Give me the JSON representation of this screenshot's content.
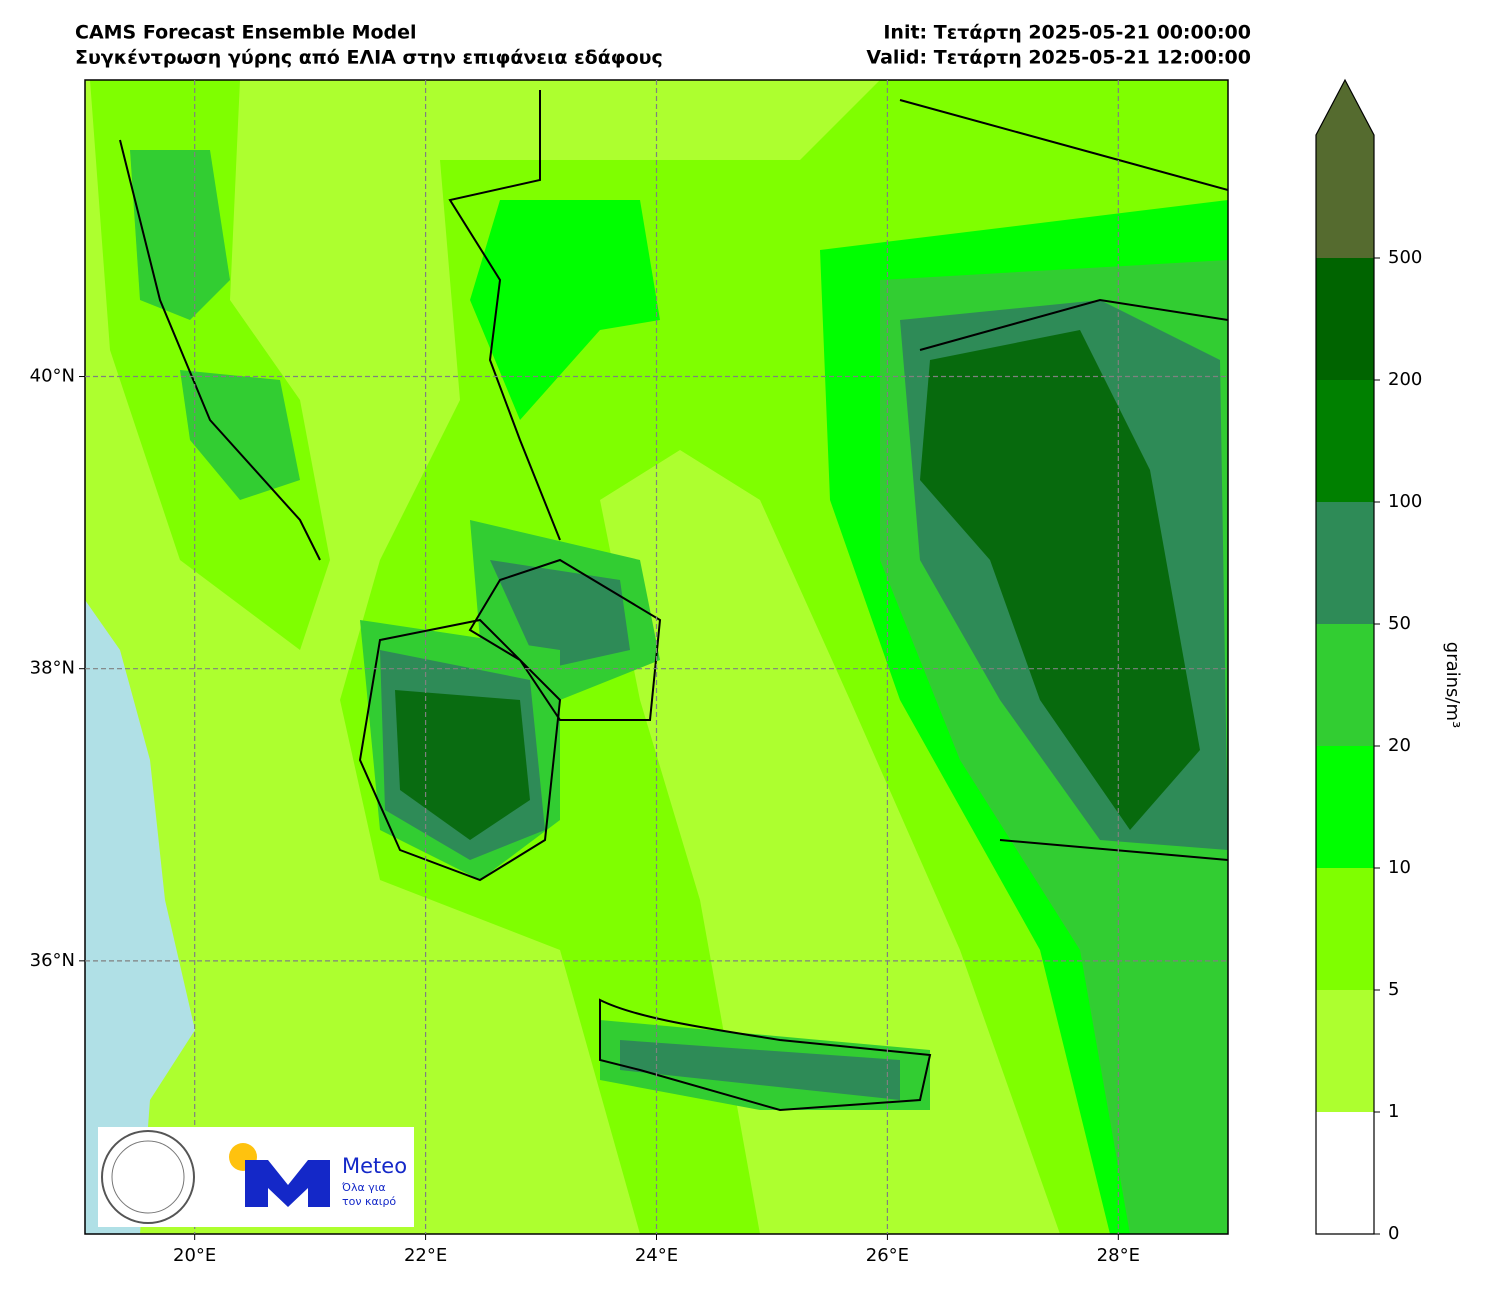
{
  "header": {
    "title": "CAMS Forecast Ensemble Model",
    "subtitle": "Συγκέντρωση γύρης από ΕΛΙΑ στην επιφάνεια εδάφους",
    "init": "Init: Τετάρτη 2025-05-21 00:00:00",
    "valid": "Valid: Τετάρτη 2025-05-21 12:00:00"
  },
  "map": {
    "xlim": [
      19.05,
      28.95
    ],
    "ylim": [
      34.13,
      42.03
    ],
    "xticks": [
      {
        "value": 20,
        "label": "20°E"
      },
      {
        "value": 22,
        "label": "22°E"
      },
      {
        "value": 24,
        "label": "24°E"
      },
      {
        "value": 26,
        "label": "26°E"
      },
      {
        "value": 28,
        "label": "28°E"
      }
    ],
    "yticks": [
      {
        "value": 36,
        "label": "36°N"
      },
      {
        "value": 38,
        "label": "38°N"
      },
      {
        "value": 40,
        "label": "40°N"
      }
    ]
  },
  "colorbar": {
    "label": "grains/m³",
    "bounds": [
      0,
      1,
      5,
      10,
      20,
      50,
      100,
      200,
      500
    ],
    "colors": [
      "#ffffff",
      "#adff2f",
      "#7fff00",
      "#00ff00",
      "#32cd32",
      "#2e8b57",
      "#008000",
      "#006400"
    ],
    "extend_color": "#556b2f"
  },
  "logo": {
    "brand": "Meteo",
    "slogan_1": "Όλα για",
    "slogan_2": "τον καιρό"
  }
}
